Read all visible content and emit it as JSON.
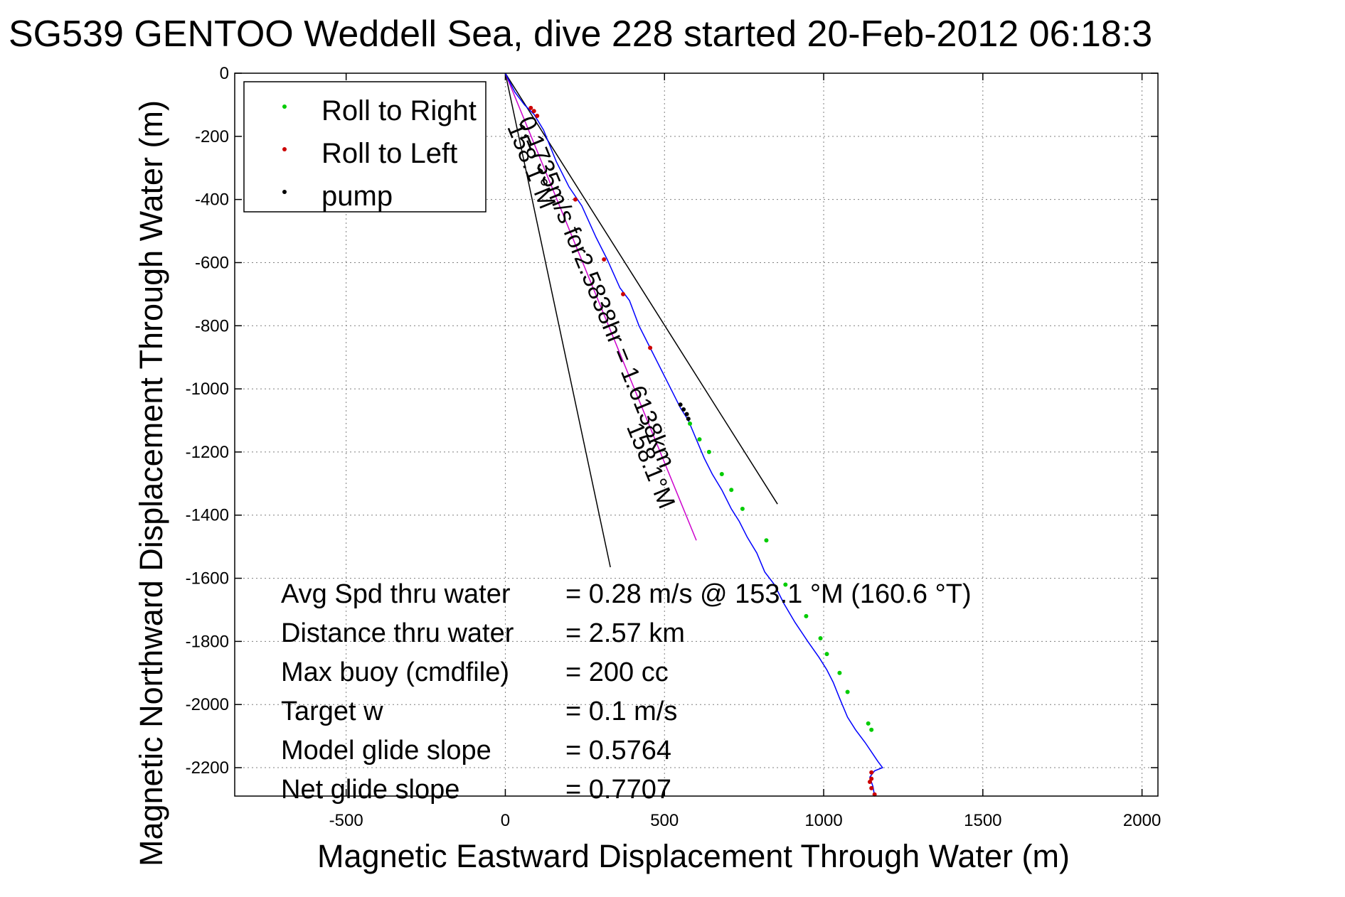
{
  "chart_data": {
    "type": "scatter",
    "title": "SG539 GENTOO Weddell Sea, dive 228 started 20-Feb-2012 06:18:3",
    "xlabel": "Magnetic Eastward Displacement Through Water (m)",
    "ylabel": "Magnetic Northward Displacement Through Water (m)",
    "xlim": [
      -850,
      2050
    ],
    "ylim": [
      -2290,
      0
    ],
    "xticks": [
      -500,
      0,
      500,
      1000,
      1500,
      2000
    ],
    "yticks": [
      0,
      -200,
      -400,
      -600,
      -800,
      -1000,
      -1200,
      -1400,
      -1600,
      -1800,
      -2000,
      -2200
    ],
    "grid": true,
    "legend_position": "top-left",
    "legend": [
      {
        "label": "Roll to Right",
        "color": "#00cc00"
      },
      {
        "label": "Roll to Left",
        "color": "#cc0000"
      },
      {
        "label": "pump",
        "color": "#000000"
      }
    ],
    "track": {
      "name": "track",
      "color": "#0000ff",
      "x": [
        0,
        30,
        60,
        90,
        120,
        160,
        200,
        240,
        285,
        320,
        360,
        390,
        420,
        455,
        490,
        520,
        550,
        575,
        600,
        625,
        650,
        680,
        710,
        735,
        760,
        790,
        815,
        845,
        875,
        910,
        950,
        985,
        1010,
        1030,
        1050,
        1075,
        1100,
        1130,
        1150,
        1170,
        1185,
        1160,
        1145,
        1155,
        1160
      ],
      "y": [
        0,
        -60,
        -100,
        -130,
        -180,
        -280,
        -360,
        -420,
        -520,
        -590,
        -680,
        -720,
        -800,
        -870,
        -940,
        -1000,
        -1060,
        -1100,
        -1160,
        -1220,
        -1270,
        -1320,
        -1380,
        -1420,
        -1470,
        -1520,
        -1580,
        -1620,
        -1680,
        -1740,
        -1800,
        -1850,
        -1890,
        -1930,
        -1980,
        -2040,
        -2080,
        -2120,
        -2150,
        -2180,
        -2200,
        -2210,
        -2230,
        -2260,
        -2290
      ]
    },
    "roll_right_points": {
      "x": [
        580,
        610,
        640,
        680,
        710,
        745,
        820,
        880,
        945,
        990,
        1010,
        1050,
        1075,
        1140,
        1150
      ],
      "y": [
        -1110,
        -1160,
        -1200,
        -1270,
        -1320,
        -1380,
        -1480,
        -1620,
        -1720,
        -1790,
        -1840,
        -1900,
        -1960,
        -2060,
        -2080
      ]
    },
    "roll_left_points": {
      "x": [
        80,
        90,
        100,
        220,
        310,
        370,
        455,
        1150,
        1150,
        1145,
        1150,
        1160
      ],
      "y": [
        -110,
        -120,
        -135,
        -400,
        -590,
        -700,
        -870,
        -2215,
        -2235,
        -2245,
        -2265,
        -2285
      ]
    },
    "pump_points": {
      "x": [
        550,
        560,
        570,
        575
      ],
      "y": [
        -1050,
        -1065,
        -1080,
        -1095
      ]
    },
    "bearing_lines": [
      {
        "x": [
          0,
          855
        ],
        "y": [
          0,
          -1365
        ],
        "color": "#000000"
      },
      {
        "x": [
          0,
          330
        ],
        "y": [
          0,
          -1565
        ],
        "color": "#000000"
      },
      {
        "x": [
          0,
          600
        ],
        "y": [
          0,
          -1480
        ],
        "color": "#cc00cc"
      }
    ],
    "track_annotations": [
      {
        "text": "0.1735m/s for2.5838hr = 1.6138km",
        "x": 40,
        "y": -150
      },
      {
        "text": "158.1°M",
        "x": 5,
        "y": -170
      },
      {
        "text": "158.1°M",
        "x": 380,
        "y": -1120
      }
    ],
    "stats": [
      {
        "label": "Avg Spd thru water",
        "value": "=  0.28 m/s @ 153.1 °M (160.6 °T)"
      },
      {
        "label": "Distance thru water",
        "value": "=  2.57 km"
      },
      {
        "label": "Max buoy (cmdfile)",
        "value": "= 200 cc"
      },
      {
        "label": "Target w",
        "value": "= 0.1 m/s"
      },
      {
        "label": "Model glide slope",
        "value": "= 0.5764"
      },
      {
        "label": "Net glide slope",
        "value": "= 0.7707"
      }
    ]
  }
}
